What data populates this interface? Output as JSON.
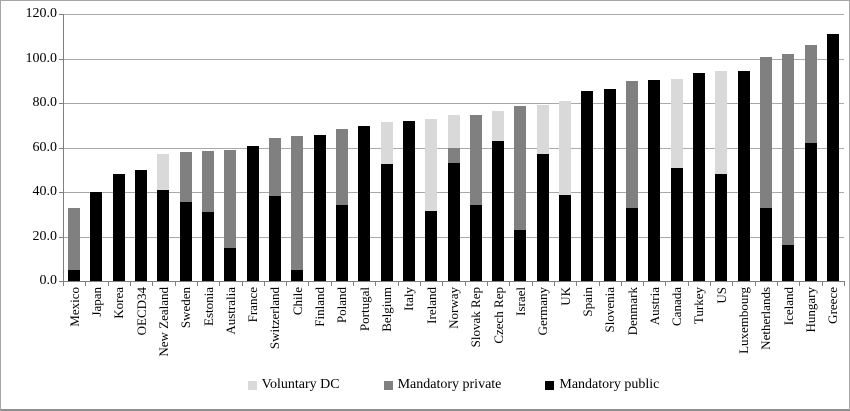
{
  "figure": {
    "background": "#ffffff",
    "border_color": "#a6a6a6"
  },
  "chart_data": {
    "type": "bar",
    "stacked": true,
    "title": "",
    "xlabel": "",
    "ylabel": "",
    "ylim": [
      0,
      120
    ],
    "ytick_step": 20,
    "ytick_labels": [
      "0.0",
      "20.0",
      "40.0",
      "60.0",
      "80.0",
      "100.0",
      "120.0"
    ],
    "grid": true,
    "gridline_color": "#a9a9a9",
    "legend_position": "bottom",
    "legend_order": [
      "Voluntary DC",
      "Mandatory private",
      "Mandatory public"
    ],
    "categories": [
      "Mexico",
      "Japan",
      "Korea",
      "OECD34",
      "New Zealand",
      "Sweden",
      "Estonia",
      "Australia",
      "France",
      "Switzerland",
      "Chile",
      "Finland",
      "Poland",
      "Portugal",
      "Belgium",
      "Italy",
      "Ireland",
      "Norway",
      "Slovak Rep",
      "Czech Rep",
      "Israel",
      "Germany",
      "UK",
      "Spain",
      "Slovenia",
      "Denmark",
      "Austria",
      "Canada",
      "Turkey",
      "US",
      "Luxembourg",
      "Netherlands",
      "Iceland",
      "Hungary",
      "Greece"
    ],
    "series": [
      {
        "name": "Mandatory public",
        "color": "#000000",
        "values": [
          5,
          40,
          48,
          50,
          41,
          35.5,
          31,
          15,
          60.5,
          38,
          5,
          65.5,
          34,
          69.5,
          52.5,
          72,
          31.5,
          53,
          34,
          63,
          23,
          57,
          38.5,
          85.5,
          86.5,
          33,
          90.5,
          51,
          93.5,
          48,
          94.5,
          33,
          16,
          62,
          111
        ]
      },
      {
        "name": "Mandatory private",
        "color": "#808080",
        "values": [
          28,
          0,
          0,
          0,
          0,
          22.5,
          27.5,
          44,
          0,
          26.5,
          60,
          0,
          34.5,
          0,
          0,
          0,
          0,
          7,
          40.5,
          0,
          55.5,
          0,
          0,
          0,
          0,
          57,
          0,
          0,
          0,
          0,
          0,
          67.5,
          86,
          44,
          0
        ]
      },
      {
        "name": "Voluntary DC",
        "color": "#d9d9d9",
        "values": [
          0,
          0,
          0,
          0,
          16,
          0,
          0,
          0,
          0,
          0,
          0,
          0,
          0,
          0,
          19,
          0,
          41.5,
          14.5,
          0,
          13.5,
          0,
          22,
          42.5,
          0,
          0,
          0,
          0,
          40,
          0,
          46.5,
          0,
          0,
          0,
          0,
          0
        ]
      }
    ]
  }
}
